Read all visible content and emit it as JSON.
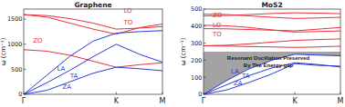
{
  "chart_data": [
    {
      "type": "line",
      "title": "Graphene",
      "y_label": "ω (cm⁻¹)",
      "grid": false,
      "x": [
        0,
        0.25,
        0.5,
        0.75,
        1,
        1.25,
        1.5
      ],
      "xlim": [
        0,
        1.5
      ],
      "xticks": [
        {
          "value": 0,
          "label": "Γ"
        },
        {
          "value": 1,
          "label": "K"
        },
        {
          "value": 1.5,
          "label": "M"
        }
      ],
      "ylim": [
        0,
        1700
      ],
      "yticks": [
        0,
        500,
        1000,
        1500
      ],
      "series": [
        {
          "name": "LO",
          "color": "#e8323c",
          "values": [
            1590,
            1570,
            1510,
            1420,
            1300,
            1320,
            1350
          ]
        },
        {
          "name": "TO",
          "color": "#e8323c",
          "values": [
            1590,
            1540,
            1420,
            1300,
            1200,
            1330,
            1400
          ]
        },
        {
          "name": "ZO",
          "color": "#e8323c",
          "values": [
            890,
            860,
            780,
            660,
            540,
            590,
            630
          ]
        },
        {
          "name": "LA",
          "color": "#2b3bd6",
          "values": [
            0,
            380,
            760,
            1060,
            1220,
            1250,
            1270
          ]
        },
        {
          "name": "TA",
          "color": "#2b3bd6",
          "values": [
            0,
            230,
            480,
            750,
            1000,
            800,
            640
          ]
        },
        {
          "name": "ZA",
          "color": "#2b3bd6",
          "values": [
            0,
            80,
            250,
            420,
            540,
            510,
            470
          ]
        }
      ]
    },
    {
      "type": "line",
      "title": "MoS2",
      "y_label": "ω (cm⁻¹)",
      "grid": false,
      "x": [
        0,
        0.25,
        0.5,
        0.75,
        1,
        1.25,
        1.5
      ],
      "xlim": [
        0,
        1.5
      ],
      "xticks": [
        {
          "value": 0,
          "label": "Γ"
        },
        {
          "value": 1,
          "label": "K"
        },
        {
          "value": 1.5,
          "label": "M"
        }
      ],
      "ylim": [
        0,
        500
      ],
      "yticks": [
        0,
        100,
        200,
        300,
        400,
        500
      ],
      "band": {
        "label": [
          "Resonant Oscillation Preserved",
          "By The Energy gap"
        ],
        "color": "#a3a3a3",
        "upper": [
          250,
          250,
          250,
          250,
          250,
          250,
          250
        ],
        "lower": [
          0,
          80,
          150,
          200,
          235,
          230,
          226
        ]
      },
      "series": [
        {
          "name": "ZO",
          "color": "#e8323c",
          "values": [
            470,
            468,
            460,
            452,
            445,
            448,
            452
          ]
        },
        {
          "name": "LO",
          "color": "#e8323c",
          "values": [
            405,
            402,
            392,
            378,
            365,
            368,
            372
          ]
        },
        {
          "name": "TO",
          "color": "#e8323c",
          "values": [
            385,
            384,
            380,
            376,
            372,
            382,
            392
          ]
        },
        {
          "color": "#e8323c",
          "values": [
            460,
            462,
            468,
            474,
            478,
            476,
            473
          ]
        },
        {
          "color": "#e8323c",
          "values": [
            285,
            288,
            296,
            306,
            316,
            321,
            325
          ]
        },
        {
          "color": "#e8323c",
          "values": [
            285,
            283,
            280,
            278,
            275,
            278,
            282
          ]
        },
        {
          "name": "LA",
          "color": "#2b3bd6",
          "values": [
            0,
            80,
            150,
            200,
            235,
            230,
            226
          ]
        },
        {
          "name": "TA",
          "color": "#2b3bd6",
          "values": [
            0,
            55,
            110,
            155,
            185,
            175,
            160
          ]
        },
        {
          "name": "ZA",
          "color": "#2b3bd6",
          "values": [
            0,
            25,
            70,
            120,
            180,
            170,
            165
          ]
        }
      ]
    }
  ]
}
